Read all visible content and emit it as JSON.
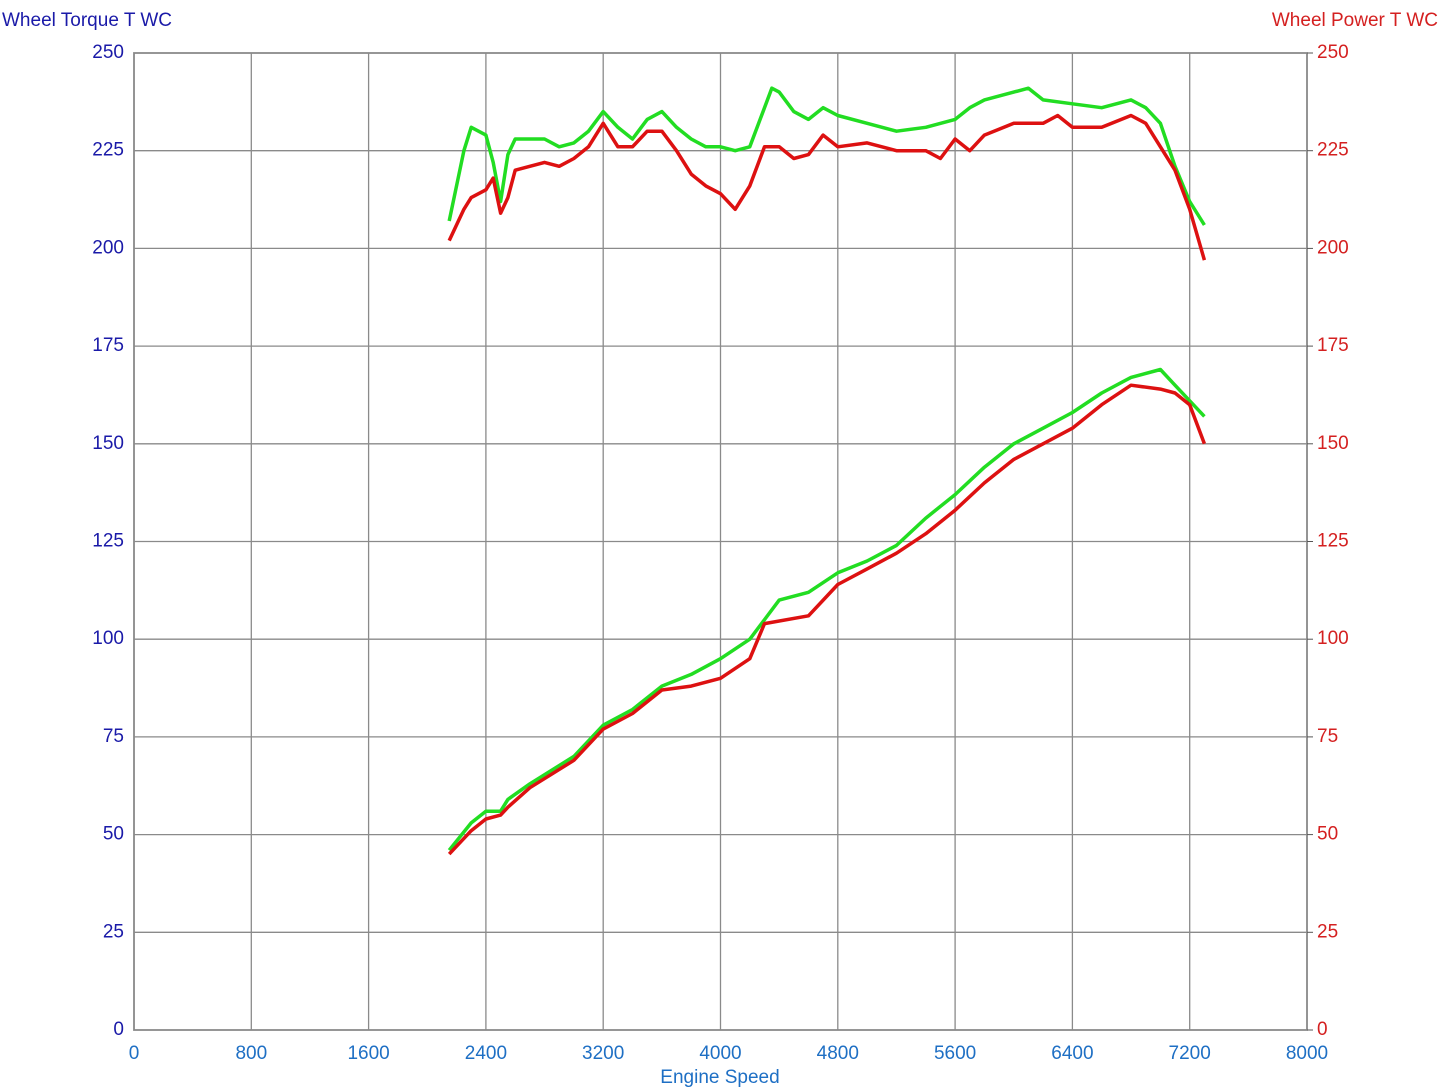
{
  "chart_data": {
    "type": "line",
    "y_title": "Wheel Torque T WC",
    "y2_title": "Wheel Power T WC",
    "x_title": "Engine Speed",
    "xlim": [
      0,
      8000
    ],
    "xticks": [
      0,
      800,
      1600,
      2400,
      3200,
      4000,
      4800,
      5600,
      6400,
      7200,
      8000
    ],
    "ylim": [
      0,
      250
    ],
    "yticks": [
      0,
      25,
      50,
      75,
      100,
      125,
      150,
      175,
      200,
      225,
      250
    ],
    "y2lim": [
      0,
      250
    ],
    "y2ticks": [
      0,
      25,
      50,
      75,
      100,
      125,
      150,
      175,
      200,
      225,
      250
    ],
    "grid": true,
    "series": [
      {
        "color": "#22dd22",
        "axis": "y",
        "x": [
          2150,
          2250,
          2300,
          2400,
          2450,
          2500,
          2550,
          2600,
          2800,
          2900,
          3000,
          3100,
          3200,
          3300,
          3400,
          3500,
          3600,
          3700,
          3800,
          3900,
          4000,
          4100,
          4200,
          4300,
          4350,
          4400,
          4500,
          4600,
          4700,
          4800,
          5000,
          5200,
          5400,
          5600,
          5700,
          5800,
          6000,
          6100,
          6200,
          6400,
          6600,
          6800,
          6900,
          7000,
          7100,
          7200,
          7300
        ],
        "values": [
          207,
          225,
          231,
          229,
          222,
          212,
          224,
          228,
          228,
          226,
          227,
          230,
          235,
          231,
          228,
          233,
          235,
          231,
          228,
          226,
          226,
          225,
          226,
          236,
          241,
          240,
          235,
          233,
          236,
          234,
          232,
          230,
          231,
          233,
          236,
          238,
          240,
          241,
          238,
          237,
          236,
          238,
          236,
          232,
          221,
          212,
          206
        ]
      },
      {
        "color": "#dd1111",
        "axis": "y",
        "x": [
          2150,
          2250,
          2300,
          2400,
          2450,
          2500,
          2550,
          2600,
          2800,
          2900,
          3000,
          3100,
          3200,
          3300,
          3400,
          3500,
          3600,
          3700,
          3800,
          3900,
          4000,
          4100,
          4200,
          4300,
          4400,
          4500,
          4600,
          4700,
          4800,
          5000,
          5200,
          5400,
          5500,
          5600,
          5700,
          5800,
          6000,
          6200,
          6300,
          6400,
          6600,
          6800,
          6900,
          7000,
          7100,
          7200,
          7300
        ],
        "values": [
          202,
          210,
          213,
          215,
          218,
          209,
          213,
          220,
          222,
          221,
          223,
          226,
          232,
          226,
          226,
          230,
          230,
          225,
          219,
          216,
          214,
          210,
          216,
          226,
          226,
          223,
          224,
          229,
          226,
          227,
          225,
          225,
          223,
          228,
          225,
          229,
          232,
          232,
          234,
          231,
          231,
          234,
          232,
          226,
          220,
          210,
          197
        ]
      },
      {
        "color": "#22dd22",
        "axis": "y2",
        "x": [
          2150,
          2300,
          2400,
          2500,
          2550,
          2700,
          3000,
          3200,
          3400,
          3600,
          3800,
          4000,
          4200,
          4400,
          4600,
          4800,
          5000,
          5200,
          5400,
          5600,
          5800,
          6000,
          6200,
          6400,
          6600,
          6800,
          7000,
          7100,
          7200,
          7300
        ],
        "values": [
          46,
          53,
          56,
          56,
          59,
          63,
          70,
          78,
          82,
          88,
          91,
          95,
          100,
          110,
          112,
          117,
          120,
          124,
          131,
          137,
          144,
          150,
          154,
          158,
          163,
          167,
          169,
          165,
          161,
          157
        ]
      },
      {
        "color": "#dd1111",
        "axis": "y2",
        "x": [
          2150,
          2300,
          2400,
          2500,
          2550,
          2700,
          3000,
          3200,
          3400,
          3600,
          3800,
          4000,
          4200,
          4300,
          4600,
          4800,
          5000,
          5200,
          5400,
          5600,
          5800,
          6000,
          6200,
          6400,
          6600,
          6800,
          7000,
          7100,
          7200,
          7300
        ],
        "values": [
          45,
          51,
          54,
          55,
          57,
          62,
          69,
          77,
          81,
          87,
          88,
          90,
          95,
          104,
          106,
          114,
          118,
          122,
          127,
          133,
          140,
          146,
          150,
          154,
          160,
          165,
          164,
          163,
          160,
          150
        ]
      }
    ]
  }
}
